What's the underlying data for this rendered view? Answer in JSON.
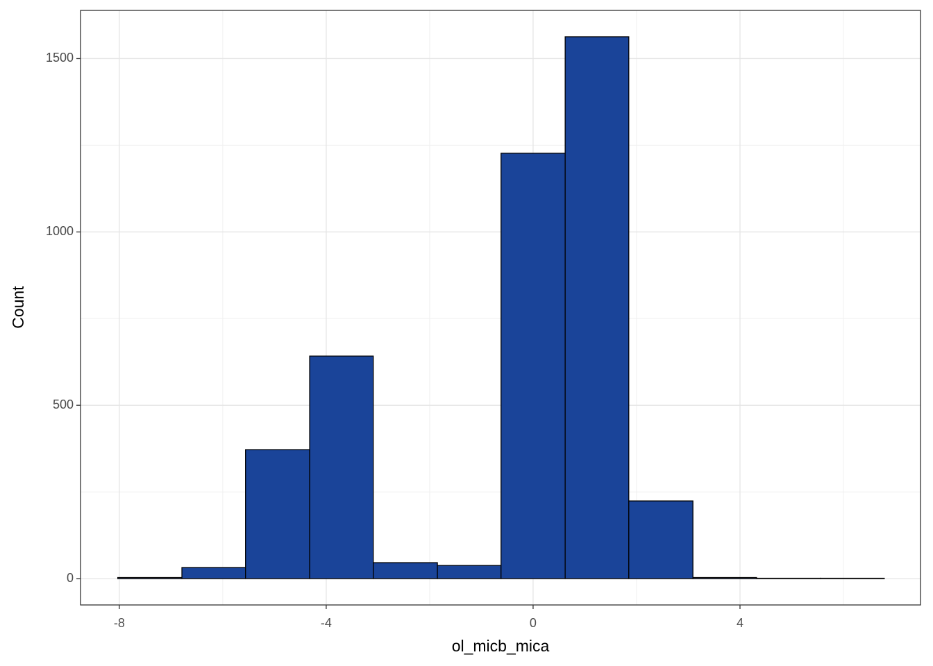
{
  "chart_data": {
    "type": "histogram",
    "x_label": "ol_micb_mica",
    "y_label": "Count",
    "bins": [
      -8.03,
      -6.79,
      -5.56,
      -4.32,
      -3.09,
      -1.85,
      -0.62,
      0.62,
      1.85,
      3.09,
      4.32,
      5.56,
      6.79
    ],
    "values": [
      3,
      32,
      372,
      642,
      46,
      38,
      1227,
      1563,
      224,
      3,
      1,
      1
    ],
    "color": "#1a4499",
    "edge_color": "#000000",
    "xlim": [
      -8.75,
      7.49
    ],
    "ylim": [
      -76,
      1639
    ],
    "xticks": [
      -8,
      -4,
      0,
      4
    ],
    "yticks": [
      0,
      500,
      1000,
      1500
    ],
    "x_minor_gridlines": [
      -6,
      -2,
      2,
      6
    ],
    "y_minor_gridlines": [
      250,
      750,
      1250
    ],
    "grid": true
  }
}
